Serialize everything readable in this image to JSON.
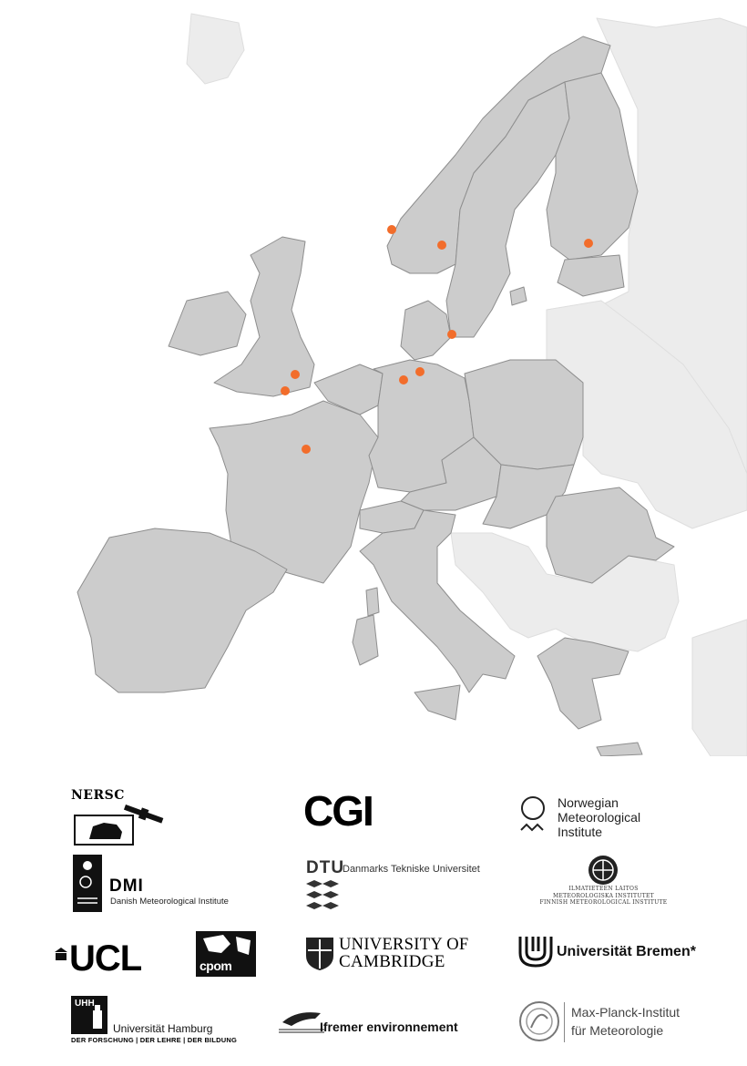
{
  "map": {
    "land_color": "#cccccc",
    "border_color": "#8e8e8e",
    "outside_color": "#ececec",
    "marker_color": "#f26d2b"
  },
  "logos": {
    "nersc": "NERSC",
    "cgi": "CGI",
    "metno": [
      "Norwegian",
      "Meteorological",
      "Institute"
    ],
    "dmi": {
      "word": "DMI",
      "subtitle": "Danish Meteorological Institute"
    },
    "dtu": {
      "word": "DTU",
      "subtitle": "Danmarks Tekniske Universitet"
    },
    "fmi": [
      "ILMATIETEEN LAITOS",
      "METEOROLOGISKA INSTITUTET",
      "FINNISH METEOROLOGICAL INSTITUTE"
    ],
    "ucl": "UCL",
    "cpom": "cpom",
    "cambridge": [
      "UNIVERSITY OF",
      "CAMBRIDGE"
    ],
    "bremen": "Universität Bremen*",
    "hamburg": {
      "mark": "UHH",
      "word": "Universität Hamburg",
      "subtitle": "DER FORSCHUNG | DER LEHRE | DER BILDUNG"
    },
    "ifremer": "Ifremer environnement",
    "mpi": [
      "Max-Planck-Institut",
      "für Meteorologie"
    ]
  }
}
